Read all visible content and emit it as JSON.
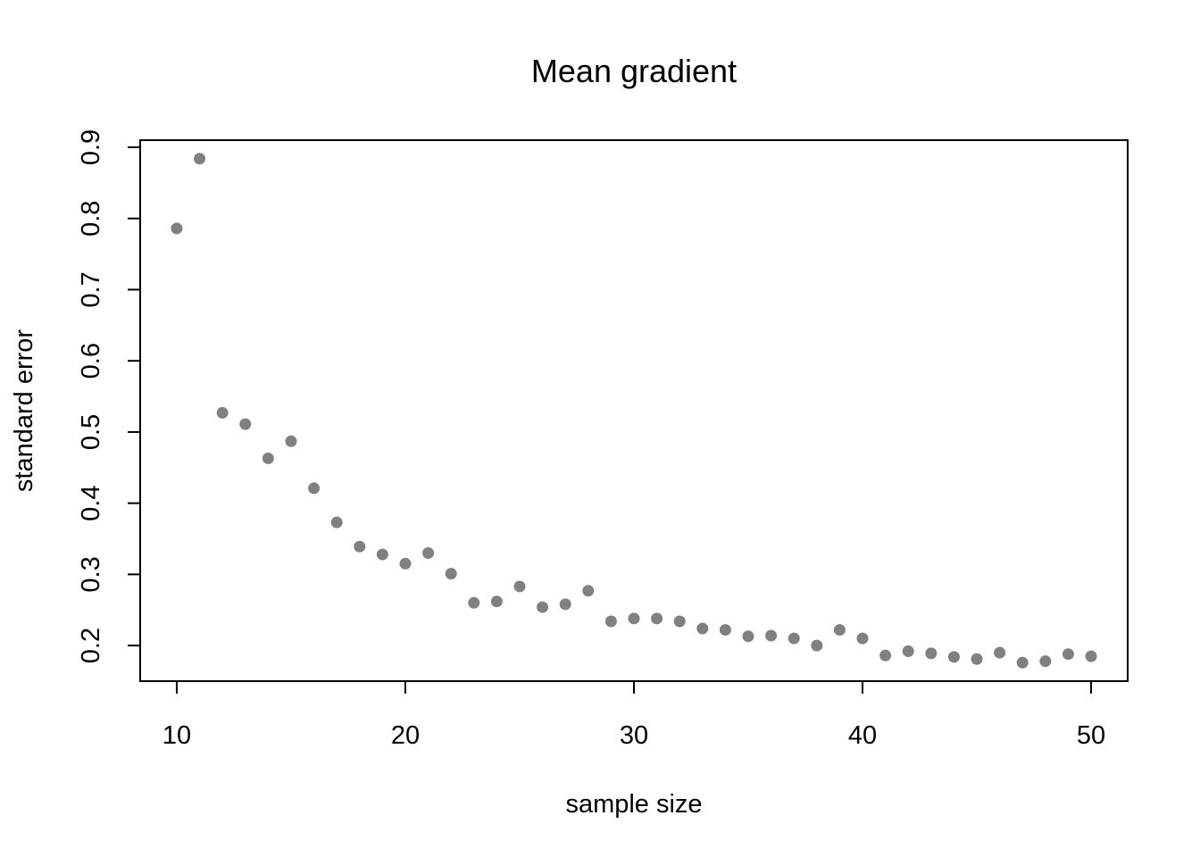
{
  "chart_data": {
    "type": "scatter",
    "title": "Mean gradient",
    "xlabel": "sample size",
    "ylabel": "standard error",
    "xlim": [
      8.4,
      51.6
    ],
    "ylim": [
      0.15,
      0.91
    ],
    "xticks": [
      10,
      20,
      30,
      40,
      50
    ],
    "yticks": [
      0.2,
      0.3,
      0.4,
      0.5,
      0.6,
      0.7,
      0.8,
      0.9
    ],
    "xtick_labels": [
      "10",
      "20",
      "30",
      "40",
      "50"
    ],
    "ytick_labels": [
      "0.2",
      "0.3",
      "0.4",
      "0.5",
      "0.6",
      "0.7",
      "0.8",
      "0.9"
    ],
    "grid": false,
    "point_color": "#808080",
    "x": [
      10,
      11,
      12,
      13,
      14,
      15,
      16,
      17,
      18,
      19,
      20,
      21,
      22,
      23,
      24,
      25,
      26,
      27,
      28,
      29,
      30,
      31,
      32,
      33,
      34,
      35,
      36,
      37,
      38,
      39,
      40,
      41,
      42,
      43,
      44,
      45,
      46,
      47,
      48,
      49,
      50
    ],
    "y": [
      0.786,
      0.884,
      0.527,
      0.511,
      0.463,
      0.487,
      0.421,
      0.373,
      0.339,
      0.328,
      0.315,
      0.33,
      0.301,
      0.26,
      0.262,
      0.283,
      0.254,
      0.258,
      0.277,
      0.234,
      0.238,
      0.238,
      0.234,
      0.224,
      0.222,
      0.213,
      0.214,
      0.21,
      0.2,
      0.222,
      0.21,
      0.186,
      0.192,
      0.189,
      0.184,
      0.181,
      0.19,
      0.176,
      0.178,
      0.188,
      0.185
    ]
  }
}
